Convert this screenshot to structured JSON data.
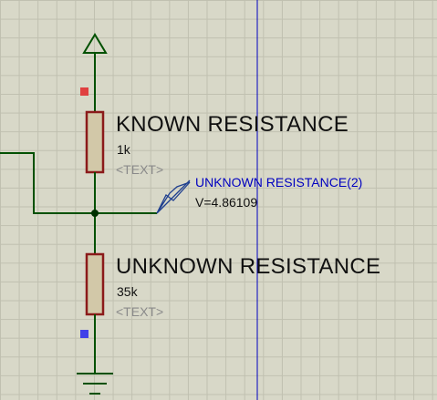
{
  "components": {
    "r1": {
      "name": "KNOWN RESISTANCE",
      "value": "1k",
      "placeholder": "<TEXT>"
    },
    "r2": {
      "name": "UNKNOWN RESISTANCE",
      "value": "35k",
      "placeholder": "<TEXT>"
    }
  },
  "probe": {
    "name": "UNKNOWN RESISTANCE(2)",
    "reading": "V=4.86109"
  },
  "colors": {
    "background": "#d8d8c8",
    "grid": "#c0c0b0",
    "wire": "#005000",
    "resistor_outline": "#8b1a1a",
    "resistor_fill": "#d2c8a8",
    "pin_red": "#e04040",
    "pin_blue": "#4040e8",
    "cursor_line": "#0000c0",
    "probe_text": "#0000c0"
  },
  "icons": {
    "power": "power-terminal-arrow-icon",
    "ground": "ground-terminal-icon",
    "probe": "voltage-probe-arrow-icon"
  }
}
